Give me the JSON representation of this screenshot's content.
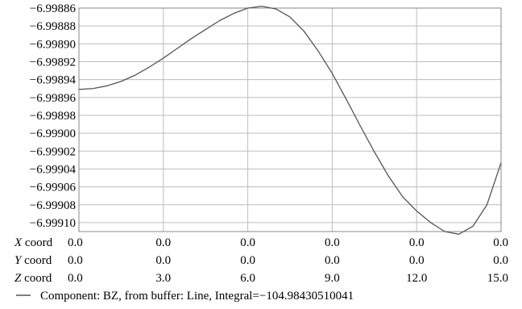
{
  "chart_data": {
    "type": "line",
    "title": "",
    "xlabel": "",
    "ylabel": "",
    "xlim": [
      0,
      15
    ],
    "ylim": [
      -6.99911,
      -6.99886
    ],
    "y_ticks": [
      "−6.99886",
      "−6.99888",
      "−6.99890",
      "−6.99892",
      "−6.99894",
      "−6.99896",
      "−6.99898",
      "−6.99900",
      "−6.99902",
      "−6.99904",
      "−6.99906",
      "−6.99908",
      "−6.99910"
    ],
    "grid": true,
    "x_coord_rows": [
      {
        "label_italic": "X",
        "label_rest": " coord",
        "values": [
          "0.0",
          "0.0",
          "0.0",
          "0.0",
          "0.0",
          "0.0"
        ]
      },
      {
        "label_italic": "Y",
        "label_rest": " coord",
        "values": [
          "0.0",
          "0.0",
          "0.0",
          "0.0",
          "0.0",
          "0.0"
        ]
      },
      {
        "label_italic": "Z",
        "label_rest": " coord",
        "values": [
          "0.0",
          "3.0",
          "6.0",
          "9.0",
          "12.0",
          "15.0"
        ]
      }
    ],
    "series": [
      {
        "name": "Component: BZ, from buffer: Line, Integral=−104.98430510041",
        "color": "#555555",
        "x": [
          0,
          0.5,
          1.0,
          1.5,
          2.0,
          2.5,
          3.0,
          3.5,
          4.0,
          4.5,
          5.0,
          5.5,
          6.0,
          6.5,
          7.0,
          7.5,
          8.0,
          8.5,
          9.0,
          9.5,
          10.0,
          10.5,
          11.0,
          11.5,
          12.0,
          12.5,
          13.0,
          13.5,
          14.0,
          14.5,
          15.0
        ],
        "y": [
          -6.998951,
          -6.99895,
          -6.998947,
          -6.998942,
          -6.998935,
          -6.998926,
          -6.998916,
          -6.998905,
          -6.998894,
          -6.998884,
          -6.998874,
          -6.998866,
          -6.99886,
          -6.998858,
          -6.998861,
          -6.99887,
          -6.998886,
          -6.998908,
          -6.998933,
          -6.998962,
          -6.998992,
          -6.999021,
          -6.999048,
          -6.999071,
          -6.999087,
          -6.9991,
          -6.99911,
          -6.999113,
          -6.999104,
          -6.99908,
          -6.999033
        ]
      }
    ]
  }
}
